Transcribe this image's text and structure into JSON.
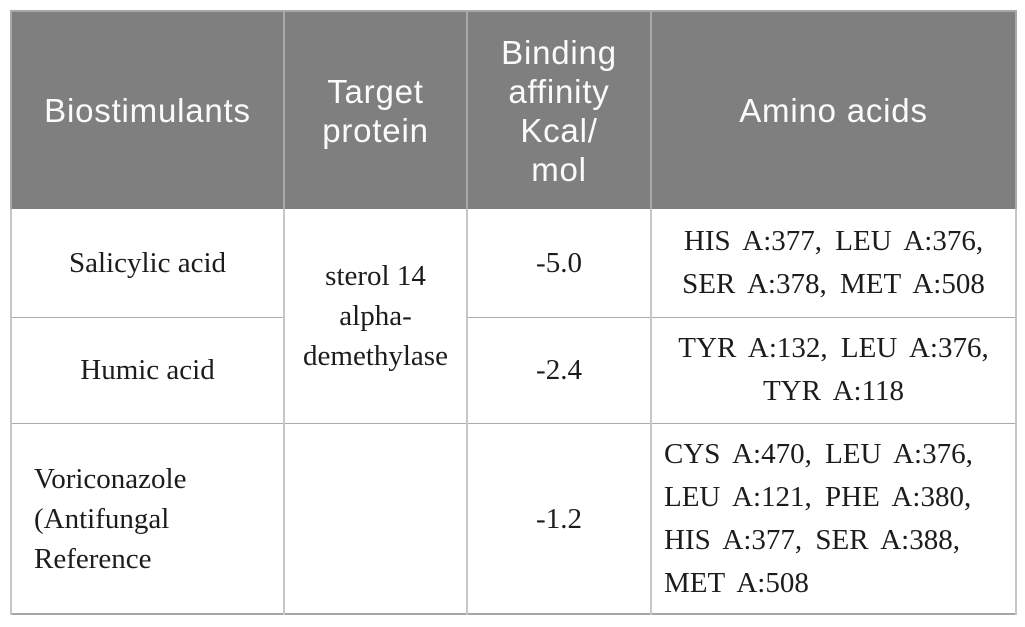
{
  "table": {
    "name": "molecular-docking-results",
    "headers": [
      {
        "label": "Biostimulants"
      },
      {
        "lines": [
          "Target",
          "protein"
        ]
      },
      {
        "lines": [
          "Binding",
          "affinity",
          "Kcal/",
          "mol"
        ]
      },
      {
        "label": "Amino acids"
      }
    ],
    "rows": [
      {
        "biostimulant": "Salicylic acid",
        "target_protein_lines": [
          "sterol 14",
          "alpha-",
          "demethylase"
        ],
        "binding_affinity": "-5.0",
        "amino_acids_lines": [
          "HIS A:377, LEU A:376,",
          "SER A:378, MET A:508"
        ]
      },
      {
        "biostimulant": "Humic acid",
        "binding_affinity": "-2.4",
        "amino_acids_lines": [
          "TYR A:132, LEU A:376,",
          "TYR A:118"
        ]
      },
      {
        "biostimulant_lines": [
          "Voriconazole",
          "(Antifungal",
          "Reference"
        ],
        "target_protein": "",
        "binding_affinity": "-1.2",
        "amino_acids_lines": [
          "CYS A:470, LEU A:376,",
          "LEU A:121, PHE A:380,",
          "HIS A:377, SER A:388,",
          "MET A:508"
        ]
      }
    ],
    "colors": {
      "header_background": "#7f7f7f",
      "header_text": "#fbfbfb",
      "body_text": "#1c1c1c",
      "vertical_border": "#c6c6c6",
      "horizontal_border": "#ababab",
      "outer_border": "#a6a6a6"
    }
  }
}
